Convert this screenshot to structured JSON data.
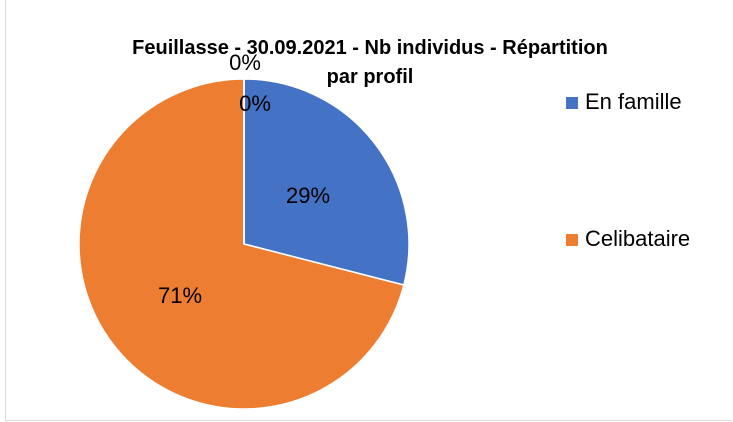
{
  "chart_data": {
    "type": "pie",
    "title": "Feuillasse - 30.09.2021 - Nb individus - Répartition par profil",
    "categories": [
      "En famille",
      "Celibataire",
      null,
      null
    ],
    "values": [
      29,
      71,
      0,
      0
    ],
    "value_labels": [
      "29%",
      "71%",
      "0%",
      "0%"
    ],
    "colors": [
      "#4472c4",
      "#ed7d31",
      "#a5a5a5",
      "#ffc000"
    ],
    "legend": "right"
  }
}
